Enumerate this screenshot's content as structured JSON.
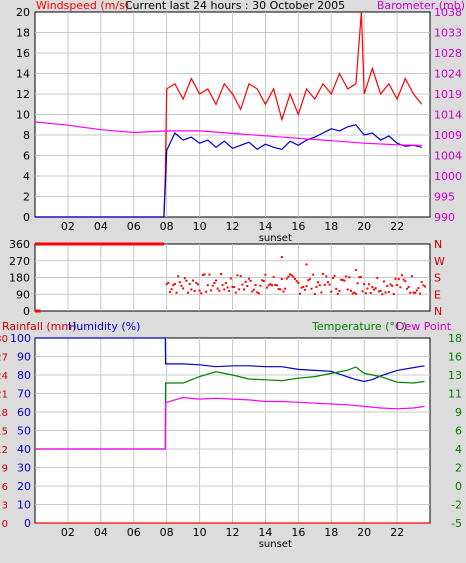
{
  "chart_data": [
    {
      "type": "line",
      "title": "Current last 24 hours : 30 October 2005",
      "left_axis_label": "Windspeed (m/s)",
      "right_axis_label": "Barometer (mb)",
      "x_ticks": [
        "02",
        "04",
        "06",
        "08",
        "10",
        "12",
        "14",
        "16",
        "18",
        "20",
        "22"
      ],
      "sunset_label": "sunset",
      "sunset_at": "14:40",
      "left_ylim": [
        0,
        20
      ],
      "left_ticks": [
        0,
        2,
        4,
        6,
        8,
        10,
        12,
        14,
        16,
        18,
        20
      ],
      "right_ylim": [
        990,
        1040
      ],
      "right_ticks": [
        990,
        995,
        1000,
        1004,
        1009,
        1014,
        1019,
        1024,
        1028,
        1033,
        1038
      ],
      "grid": true,
      "colors": {
        "gust": "#ff0000",
        "wind": "#0000cc",
        "barometer": "#ff00ff"
      },
      "series": [
        {
          "name": "",
          "axis": "left",
          "color": "gust",
          "x": [
            "00:00",
            "07:50",
            "07:55",
            "08:00",
            "08:30",
            "09:00",
            "09:30",
            "10:00",
            "10:30",
            "11:00",
            "11:30",
            "12:00",
            "12:30",
            "13:00",
            "13:30",
            "14:00",
            "14:30",
            "15:00",
            "15:30",
            "16:00",
            "16:30",
            "17:00",
            "17:30",
            "18:00",
            "18:30",
            "19:00",
            "19:30",
            "19:50",
            "20:00",
            "20:30",
            "21:00",
            "21:30",
            "22:00",
            "22:30",
            "23:00",
            "23:30"
          ],
          "values": [
            0,
            0,
            4,
            12.5,
            13,
            11.5,
            13.5,
            12,
            12.5,
            11,
            13,
            12,
            10.5,
            13,
            12.5,
            11,
            12.5,
            9.5,
            12,
            10,
            12.5,
            11.5,
            13,
            12,
            14,
            12.5,
            13,
            20,
            12,
            14.5,
            12,
            13,
            11.5,
            13.5,
            12,
            11
          ]
        },
        {
          "name": "",
          "axis": "left",
          "color": "wind",
          "x": [
            "00:00",
            "07:50",
            "07:55",
            "08:00",
            "08:30",
            "09:00",
            "09:30",
            "10:00",
            "10:30",
            "11:00",
            "11:30",
            "12:00",
            "12:30",
            "13:00",
            "13:30",
            "14:00",
            "14:30",
            "15:00",
            "15:30",
            "16:00",
            "16:30",
            "17:00",
            "17:30",
            "18:00",
            "18:30",
            "19:00",
            "19:30",
            "20:00",
            "20:30",
            "21:00",
            "21:30",
            "22:00",
            "22:30",
            "23:00",
            "23:30"
          ],
          "values": [
            0,
            0,
            3,
            6.5,
            8.2,
            7.5,
            7.8,
            7.2,
            7.5,
            6.8,
            7.4,
            6.7,
            7.0,
            7.3,
            6.6,
            7.1,
            6.8,
            6.6,
            7.4,
            7.0,
            7.5,
            7.8,
            8.2,
            8.6,
            8.4,
            8.8,
            9.0,
            8.0,
            8.2,
            7.5,
            7.9,
            7.2,
            6.9,
            7.0,
            6.8
          ]
        },
        {
          "name": "",
          "axis": "right",
          "color": "barometer",
          "x": [
            "00:00",
            "02:00",
            "04:00",
            "06:00",
            "08:00",
            "10:00",
            "12:00",
            "14:00",
            "16:00",
            "18:00",
            "20:00",
            "22:00",
            "23:30"
          ],
          "values": [
            1013.2,
            1012.4,
            1011.3,
            1010.6,
            1011.0,
            1011.0,
            1010.4,
            1009.8,
            1009.2,
            1008.6,
            1008.0,
            1007.6,
            1007.5
          ]
        }
      ]
    },
    {
      "type": "scatter",
      "y_ticks": [
        "360",
        "270",
        "180",
        "90",
        "0"
      ],
      "right_ticks": [
        "N",
        "W",
        "S",
        "E",
        "N"
      ],
      "ylim": [
        0,
        360
      ],
      "colors": {
        "points": "#ff0000"
      },
      "series": [
        {
          "name": "",
          "segments": [
            {
              "from": "00:00",
              "to": "07:50",
              "direction": 360
            },
            {
              "from": "00:00",
              "to": "00:20",
              "direction": 0
            }
          ],
          "scatter_from": "08:00",
          "scatter_to": "23:45",
          "direction_range": [
            90,
            200
          ],
          "outliers": [
            [
              15.0,
              290
            ],
            [
              16.5,
              250
            ],
            [
              19.5,
              220
            ]
          ]
        }
      ]
    },
    {
      "type": "line",
      "left_axis_label_1": "Rainfall (mm)",
      "left_axis_label_2": "Humidity (%)",
      "right_axis_label_1": "Temperature (°C)",
      "right_axis_label_2": "Dew Point",
      "x_ticks": [
        "02",
        "04",
        "06",
        "08",
        "10",
        "12",
        "14",
        "16",
        "18",
        "20",
        "22"
      ],
      "sunset_label": "sunset",
      "rainfall_ticks": [
        "0",
        "3",
        "6",
        "9",
        "12",
        "15",
        "18",
        "21",
        "24",
        "27",
        "30"
      ],
      "humidity_ticks": [
        "0",
        "10",
        "20",
        "30",
        "40",
        "50",
        "60",
        "70",
        "80",
        "90",
        "100"
      ],
      "temperature_ticks": [
        "-5",
        "-2",
        "0",
        "2",
        "4",
        "6",
        "9",
        "11",
        "13",
        "16",
        "18"
      ],
      "colors": {
        "rainfall": "#ff0000",
        "humidity": "#0000cc",
        "temperature": "#008000",
        "dew_point": "#ff00ff"
      },
      "series": [
        {
          "name": "",
          "color": "humidity",
          "x": [
            "00:00",
            "07:55",
            "07:56",
            "08:00",
            "09:00",
            "10:00",
            "11:00",
            "12:00",
            "13:00",
            "14:00",
            "15:00",
            "16:00",
            "17:00",
            "18:00",
            "19:00",
            "19:30",
            "20:00",
            "20:30",
            "21:00",
            "22:00",
            "23:00",
            "23:40"
          ],
          "values": [
            100,
            100,
            86,
            86,
            86,
            85.5,
            84.5,
            85,
            85,
            84.5,
            84.5,
            83,
            82.5,
            82,
            79,
            77.5,
            76.5,
            77.5,
            79.5,
            82.5,
            84,
            85
          ]
        },
        {
          "name": "",
          "color": "temperature",
          "x": [
            "00:00",
            "07:55",
            "07:56",
            "08:00",
            "09:00",
            "10:00",
            "11:00",
            "12:00",
            "13:00",
            "14:00",
            "15:00",
            "16:00",
            "17:00",
            "18:00",
            "19:00",
            "19:30",
            "20:00",
            "21:00",
            "22:00",
            "23:00",
            "23:40"
          ],
          "values": [
            4.2,
            4.2,
            12.4,
            12.4,
            12.4,
            13.2,
            13.8,
            13.4,
            12.9,
            12.8,
            12.7,
            13.0,
            13.2,
            13.6,
            14.0,
            14.4,
            13.6,
            13.2,
            12.5,
            12.4,
            12.6
          ]
        },
        {
          "name": "",
          "color": "dew_point",
          "x": [
            "00:00",
            "07:55",
            "07:56",
            "08:00",
            "09:00",
            "10:00",
            "11:00",
            "12:00",
            "13:00",
            "14:00",
            "15:00",
            "16:00",
            "17:00",
            "18:00",
            "19:00",
            "20:00",
            "21:00",
            "22:00",
            "23:00",
            "23:40"
          ],
          "values": [
            4.2,
            4.2,
            10.0,
            10.0,
            10.6,
            10.4,
            10.5,
            10.4,
            10.3,
            10.1,
            10.1,
            10.0,
            9.9,
            9.8,
            9.7,
            9.5,
            9.3,
            9.2,
            9.3,
            9.5
          ]
        },
        {
          "name": "",
          "color": "rainfall",
          "x": [
            "00:00",
            "23:59"
          ],
          "values": [
            0,
            0
          ]
        }
      ]
    }
  ]
}
